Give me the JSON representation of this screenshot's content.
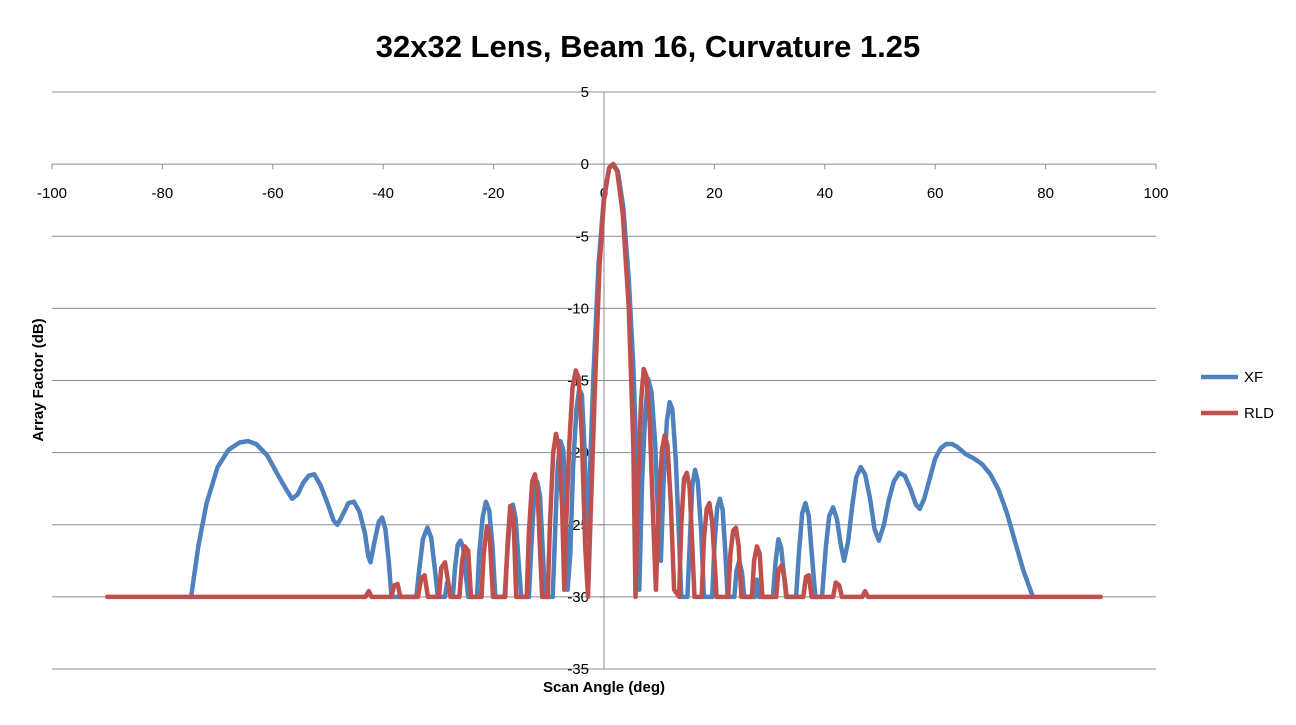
{
  "chart_data": {
    "type": "line",
    "title": "32x32 Lens, Beam 16, Curvature 1.25",
    "xlabel": "Scan Angle (deg)",
    "ylabel": "Array Factor (dB)",
    "xlim": [
      -100,
      100
    ],
    "ylim": [
      -35,
      5
    ],
    "x_ticks": [
      "-100",
      "-80",
      "-60",
      "-40",
      "-20",
      "0",
      "20",
      "40",
      "60",
      "80",
      "100"
    ],
    "y_ticks": [
      "5",
      "0",
      "-5",
      "-10",
      "-15",
      "-20",
      "-25",
      "-30",
      "-35"
    ],
    "grid": "horizontal",
    "legend_position": "right",
    "series": [
      {
        "name": "XF",
        "color": "#4F81BD",
        "points": [
          [
            -74.8,
            -30
          ],
          [
            -73.5,
            -26.5
          ],
          [
            -72,
            -23.5
          ],
          [
            -70,
            -21
          ],
          [
            -68,
            -19.8
          ],
          [
            -66,
            -19.3
          ],
          [
            -64.5,
            -19.2
          ],
          [
            -63,
            -19.4
          ],
          [
            -61,
            -20.2
          ],
          [
            -59,
            -21.6
          ],
          [
            -57.5,
            -22.6
          ],
          [
            -56.5,
            -23.2
          ],
          [
            -55.5,
            -22.9
          ],
          [
            -54.5,
            -22.1
          ],
          [
            -53.5,
            -21.6
          ],
          [
            -52.5,
            -21.5
          ],
          [
            -51.3,
            -22.3
          ],
          [
            -50,
            -23.6
          ],
          [
            -49,
            -24.7
          ],
          [
            -48.3,
            -25
          ],
          [
            -47.2,
            -24.2
          ],
          [
            -46.3,
            -23.5
          ],
          [
            -45.3,
            -23.4
          ],
          [
            -44.3,
            -24.1
          ],
          [
            -43.3,
            -25.6
          ],
          [
            -42.7,
            -27.2
          ],
          [
            -42.3,
            -27.6
          ],
          [
            -41.6,
            -26.2
          ],
          [
            -40.8,
            -24.8
          ],
          [
            -40.2,
            -24.5
          ],
          [
            -39.6,
            -25.3
          ],
          [
            -39,
            -27.5
          ],
          [
            -38.5,
            -30
          ],
          [
            -36.5,
            -30
          ],
          [
            -35.7,
            -30
          ],
          [
            -34,
            -30
          ],
          [
            -33.5,
            -28.2
          ],
          [
            -32.8,
            -26
          ],
          [
            -32,
            -25.2
          ],
          [
            -31.3,
            -25.9
          ],
          [
            -30.5,
            -28.5
          ],
          [
            -30.1,
            -30
          ],
          [
            -28.8,
            -30
          ],
          [
            -28.4,
            -29
          ],
          [
            -27.4,
            -30
          ],
          [
            -27,
            -28
          ],
          [
            -26.5,
            -26.4
          ],
          [
            -26,
            -26.1
          ],
          [
            -25.5,
            -26.6
          ],
          [
            -25,
            -28.6
          ],
          [
            -24.6,
            -30
          ],
          [
            -23,
            -30
          ],
          [
            -22.6,
            -27
          ],
          [
            -22,
            -24.5
          ],
          [
            -21.4,
            -23.4
          ],
          [
            -20.8,
            -24
          ],
          [
            -20.2,
            -26.5
          ],
          [
            -19.7,
            -30
          ],
          [
            -18,
            -30
          ],
          [
            -17.6,
            -27.5
          ],
          [
            -17,
            -24.2
          ],
          [
            -16.5,
            -23.6
          ],
          [
            -16,
            -24.6
          ],
          [
            -15.4,
            -28
          ],
          [
            -15,
            -30
          ],
          [
            -13.6,
            -30
          ],
          [
            -13.1,
            -26
          ],
          [
            -12.6,
            -22.8
          ],
          [
            -12.1,
            -22
          ],
          [
            -11.6,
            -23
          ],
          [
            -11,
            -27.5
          ],
          [
            -10.7,
            -30
          ],
          [
            -9.3,
            -30
          ],
          [
            -8.8,
            -25
          ],
          [
            -8.4,
            -21
          ],
          [
            -7.9,
            -19.2
          ],
          [
            -7.4,
            -19.8
          ],
          [
            -6.9,
            -23.5
          ],
          [
            -6.6,
            -29.5
          ],
          [
            -6.1,
            -27
          ],
          [
            -5.6,
            -21
          ],
          [
            -5,
            -17
          ],
          [
            -4.5,
            -15.6
          ],
          [
            -4,
            -16
          ],
          [
            -3.5,
            -20
          ],
          [
            -3.1,
            -26
          ],
          [
            -2.6,
            -22
          ],
          [
            -1.9,
            -14.5
          ],
          [
            -1,
            -7
          ],
          [
            0,
            -2.2
          ],
          [
            1,
            -0.2
          ],
          [
            1.7,
            0
          ],
          [
            2.5,
            -0.5
          ],
          [
            3.5,
            -3
          ],
          [
            4.5,
            -8
          ],
          [
            5.3,
            -14
          ],
          [
            6,
            -21.5
          ],
          [
            6.4,
            -29.5
          ],
          [
            6.9,
            -22
          ],
          [
            7.5,
            -17
          ],
          [
            8,
            -14.9
          ],
          [
            8.6,
            -15.8
          ],
          [
            9.3,
            -19.5
          ],
          [
            9.9,
            -25.5
          ],
          [
            10.3,
            -27.5
          ],
          [
            10.8,
            -22
          ],
          [
            11.4,
            -17.8
          ],
          [
            11.9,
            -16.5
          ],
          [
            12.4,
            -17
          ],
          [
            13,
            -20.5
          ],
          [
            13.6,
            -26
          ],
          [
            14,
            -30
          ],
          [
            15.1,
            -30
          ],
          [
            15.5,
            -26.5
          ],
          [
            16,
            -22.3
          ],
          [
            16.5,
            -21.2
          ],
          [
            17,
            -22
          ],
          [
            17.6,
            -25.5
          ],
          [
            18.1,
            -30
          ],
          [
            19.6,
            -30
          ],
          [
            20,
            -26.5
          ],
          [
            20.5,
            -23.8
          ],
          [
            21,
            -23.2
          ],
          [
            21.5,
            -24
          ],
          [
            22,
            -27
          ],
          [
            22.4,
            -30
          ],
          [
            23.6,
            -30
          ],
          [
            24,
            -28.2
          ],
          [
            24.5,
            -27.5
          ],
          [
            25,
            -28.3
          ],
          [
            25.4,
            -30
          ],
          [
            27.3,
            -30
          ],
          [
            27.7,
            -28.8
          ],
          [
            28.1,
            -30
          ],
          [
            30.6,
            -30
          ],
          [
            31.1,
            -27.5
          ],
          [
            31.6,
            -26
          ],
          [
            32.1,
            -26.6
          ],
          [
            32.6,
            -28.5
          ],
          [
            33,
            -30
          ],
          [
            34.8,
            -30
          ],
          [
            35.3,
            -27
          ],
          [
            35.9,
            -24.2
          ],
          [
            36.5,
            -23.5
          ],
          [
            37.1,
            -24.4
          ],
          [
            37.7,
            -27.3
          ],
          [
            38.3,
            -30
          ],
          [
            39.5,
            -30
          ],
          [
            40.2,
            -26.5
          ],
          [
            40.8,
            -24.4
          ],
          [
            41.5,
            -23.8
          ],
          [
            42.2,
            -24.6
          ],
          [
            42.9,
            -26.4
          ],
          [
            43.5,
            -27.5
          ],
          [
            44.2,
            -26.2
          ],
          [
            45,
            -23.6
          ],
          [
            45.7,
            -21.7
          ],
          [
            46.5,
            -21
          ],
          [
            47.3,
            -21.5
          ],
          [
            48.2,
            -23.2
          ],
          [
            49,
            -25.3
          ],
          [
            49.8,
            -26.1
          ],
          [
            50.7,
            -25
          ],
          [
            51.6,
            -23.3
          ],
          [
            52.5,
            -22
          ],
          [
            53.5,
            -21.4
          ],
          [
            54.5,
            -21.6
          ],
          [
            55.5,
            -22.5
          ],
          [
            56.5,
            -23.6
          ],
          [
            57.2,
            -23.9
          ],
          [
            58,
            -23.2
          ],
          [
            59,
            -21.8
          ],
          [
            60,
            -20.4
          ],
          [
            61,
            -19.7
          ],
          [
            62,
            -19.4
          ],
          [
            63,
            -19.4
          ],
          [
            64,
            -19.6
          ],
          [
            65.5,
            -20.1
          ],
          [
            67,
            -20.4
          ],
          [
            68.5,
            -20.8
          ],
          [
            70,
            -21.5
          ],
          [
            71.5,
            -22.6
          ],
          [
            73,
            -24.2
          ],
          [
            74.5,
            -26.2
          ],
          [
            76,
            -28.2
          ],
          [
            77.7,
            -30
          ]
        ]
      },
      {
        "name": "RLD",
        "color": "#C0504D",
        "points": [
          [
            -90,
            -30
          ],
          [
            -43.2,
            -30
          ],
          [
            -42.6,
            -29.6
          ],
          [
            -42.1,
            -30
          ],
          [
            -38.5,
            -30
          ],
          [
            -38,
            -29.2
          ],
          [
            -37.4,
            -29.1
          ],
          [
            -36.9,
            -30
          ],
          [
            -33.7,
            -30
          ],
          [
            -33.1,
            -28.7
          ],
          [
            -32.5,
            -28.5
          ],
          [
            -31.9,
            -30
          ],
          [
            -29.9,
            -30
          ],
          [
            -29.5,
            -28
          ],
          [
            -28.8,
            -27.6
          ],
          [
            -28.2,
            -29
          ],
          [
            -27.8,
            -30
          ],
          [
            -26.2,
            -30
          ],
          [
            -25.7,
            -27.5
          ],
          [
            -25.2,
            -26.5
          ],
          [
            -24.6,
            -26.8
          ],
          [
            -24.1,
            -30
          ],
          [
            -22.2,
            -30
          ],
          [
            -21.8,
            -27
          ],
          [
            -21.2,
            -25.1
          ],
          [
            -20.7,
            -25.8
          ],
          [
            -20.1,
            -30
          ],
          [
            -17.9,
            -30
          ],
          [
            -17.5,
            -26.5
          ],
          [
            -17,
            -23.7
          ],
          [
            -16.4,
            -24.5
          ],
          [
            -15.9,
            -30
          ],
          [
            -14,
            -30
          ],
          [
            -13.6,
            -25.5
          ],
          [
            -13,
            -22
          ],
          [
            -12.5,
            -21.5
          ],
          [
            -12,
            -23
          ],
          [
            -11.5,
            -27.5
          ],
          [
            -11.2,
            -30
          ],
          [
            -10.2,
            -30
          ],
          [
            -9.8,
            -25
          ],
          [
            -9.2,
            -20
          ],
          [
            -8.7,
            -18.7
          ],
          [
            -8.2,
            -19.5
          ],
          [
            -7.6,
            -23.5
          ],
          [
            -7.2,
            -29.5
          ],
          [
            -6.9,
            -25.5
          ],
          [
            -6.3,
            -19.5
          ],
          [
            -5.7,
            -15.5
          ],
          [
            -5.1,
            -14.3
          ],
          [
            -4.6,
            -14.8
          ],
          [
            -4,
            -19
          ],
          [
            -3.4,
            -26.5
          ],
          [
            -2.9,
            -30
          ],
          [
            -2.4,
            -24
          ],
          [
            -1.6,
            -15
          ],
          [
            -0.8,
            -7
          ],
          [
            0,
            -2.5
          ],
          [
            0.9,
            -0.3
          ],
          [
            1.6,
            0
          ],
          [
            2.4,
            -0.5
          ],
          [
            3.4,
            -3.5
          ],
          [
            4.5,
            -10
          ],
          [
            5.3,
            -19.5
          ],
          [
            5.7,
            -30
          ],
          [
            6.1,
            -23
          ],
          [
            6.7,
            -16.5
          ],
          [
            7.2,
            -14.2
          ],
          [
            7.7,
            -14.7
          ],
          [
            8.3,
            -18
          ],
          [
            8.9,
            -24.5
          ],
          [
            9.4,
            -29.5
          ],
          [
            9.9,
            -24
          ],
          [
            10.5,
            -19.8
          ],
          [
            11,
            -18.8
          ],
          [
            11.5,
            -19.5
          ],
          [
            12.1,
            -23.5
          ],
          [
            12.7,
            -29.5
          ],
          [
            13.6,
            -30
          ],
          [
            14,
            -25
          ],
          [
            14.5,
            -21.8
          ],
          [
            15,
            -21.4
          ],
          [
            15.5,
            -22.4
          ],
          [
            16,
            -26.5
          ],
          [
            16.4,
            -30
          ],
          [
            17.7,
            -30
          ],
          [
            18.1,
            -26
          ],
          [
            18.6,
            -23.9
          ],
          [
            19.1,
            -23.5
          ],
          [
            19.6,
            -24.8
          ],
          [
            20.1,
            -28
          ],
          [
            20.4,
            -30
          ],
          [
            22.5,
            -30
          ],
          [
            22.9,
            -27
          ],
          [
            23.4,
            -25.4
          ],
          [
            23.9,
            -25.2
          ],
          [
            24.4,
            -26.5
          ],
          [
            24.9,
            -30
          ],
          [
            26.8,
            -30
          ],
          [
            27.2,
            -27.5
          ],
          [
            27.7,
            -26.5
          ],
          [
            28.2,
            -27
          ],
          [
            28.7,
            -30
          ],
          [
            31.2,
            -30
          ],
          [
            31.6,
            -28.2
          ],
          [
            32.2,
            -27.8
          ],
          [
            32.7,
            -28.7
          ],
          [
            33.1,
            -30
          ],
          [
            36.1,
            -30
          ],
          [
            36.6,
            -28.6
          ],
          [
            37.1,
            -28.5
          ],
          [
            37.6,
            -30
          ],
          [
            41.5,
            -30
          ],
          [
            42,
            -29
          ],
          [
            42.6,
            -29.2
          ],
          [
            43.1,
            -30
          ],
          [
            46.8,
            -30
          ],
          [
            47.3,
            -29.6
          ],
          [
            47.8,
            -30
          ],
          [
            90,
            -30
          ]
        ]
      }
    ]
  }
}
